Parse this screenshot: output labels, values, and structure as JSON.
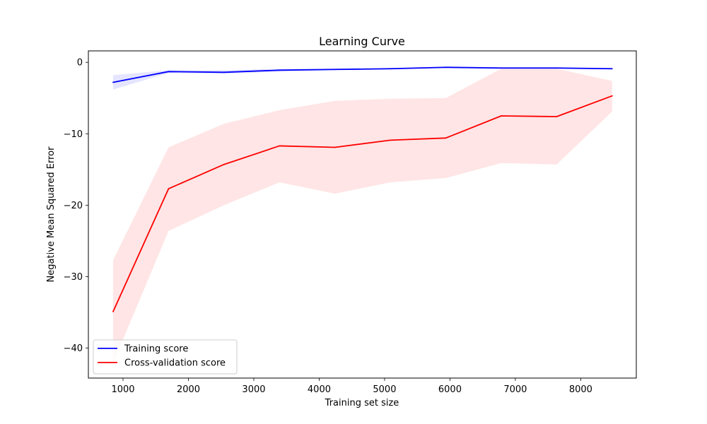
{
  "chart_data": {
    "type": "line",
    "title": "Learning Curve",
    "xlabel": "Training set size",
    "ylabel": "Negative Mean Squared Error",
    "xlim": [
      470,
      8850
    ],
    "ylim": [
      -44.2,
      1.6
    ],
    "x_ticks": [
      1000,
      2000,
      3000,
      4000,
      5000,
      6000,
      7000,
      8000
    ],
    "y_ticks": [
      0,
      -10,
      -20,
      -30,
      -40
    ],
    "tick_labels": {
      "x": [
        "1000",
        "2000",
        "3000",
        "4000",
        "5000",
        "6000",
        "7000",
        "8000"
      ],
      "y": [
        "0",
        "−10",
        "−20",
        "−30",
        "−40"
      ]
    },
    "grid": false,
    "legend_position": "lower-left",
    "x": [
      848,
      1696,
      2544,
      3392,
      4240,
      5088,
      5936,
      6784,
      7632,
      8480
    ],
    "series": [
      {
        "name": "Training score",
        "color": "#0000ff",
        "fill_color": "#0000ff",
        "values": [
          -2.8,
          -1.3,
          -1.4,
          -1.1,
          -1.0,
          -0.9,
          -0.7,
          -0.8,
          -0.8,
          -0.9
        ],
        "band_upper": [
          -1.8,
          -1.1,
          -1.1,
          -0.9,
          -0.9,
          -0.8,
          -0.6,
          -0.7,
          -0.7,
          -0.8
        ],
        "band_lower": [
          -3.8,
          -1.5,
          -1.6,
          -1.3,
          -1.1,
          -1.0,
          -0.8,
          -0.9,
          -0.9,
          -1.0
        ]
      },
      {
        "name": "Cross-validation score",
        "color": "#ff0000",
        "fill_color": "#ff0000",
        "values": [
          -34.9,
          -17.7,
          -14.3,
          -11.7,
          -11.9,
          -10.9,
          -10.6,
          -7.5,
          -7.6,
          -4.7
        ],
        "band_upper": [
          -27.7,
          -11.9,
          -8.6,
          -6.7,
          -5.4,
          -5.1,
          -5.0,
          -0.9,
          -0.9,
          -2.6
        ],
        "band_lower": [
          -42.1,
          -23.6,
          -20.0,
          -16.8,
          -18.4,
          -16.8,
          -16.2,
          -14.1,
          -14.3,
          -6.9
        ]
      }
    ]
  }
}
